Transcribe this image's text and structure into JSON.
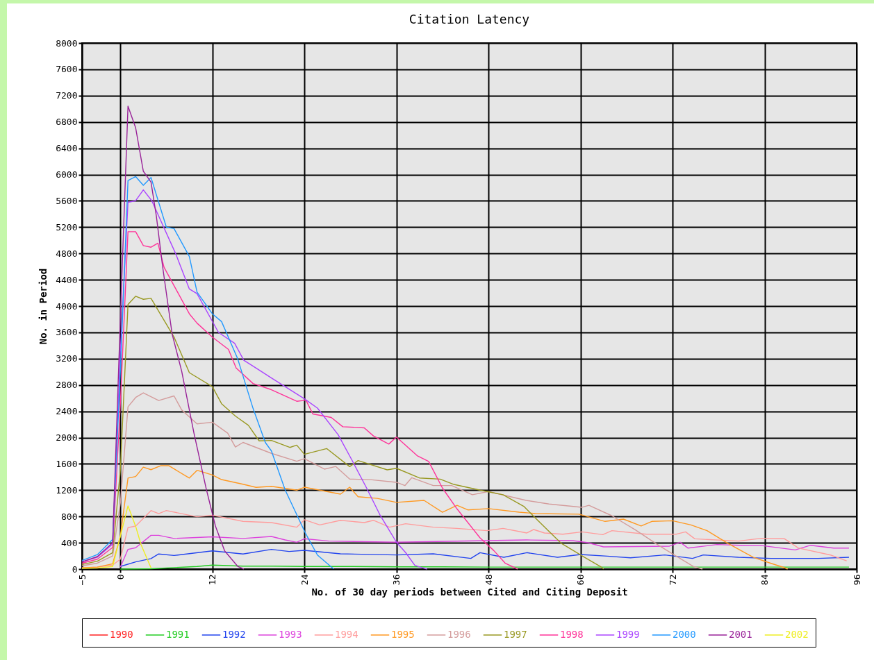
{
  "chart_data": {
    "type": "line",
    "title": "Citation Latency",
    "xlabel": "No. of 30 day periods between Cited and Citing Deposit",
    "ylabel": "No. in Period",
    "xlim": [
      -5,
      96
    ],
    "xticks": [
      -5,
      0,
      12,
      24,
      36,
      48,
      60,
      72,
      84,
      96
    ],
    "ylim": [
      0,
      8000
    ],
    "yticks": [
      0,
      400,
      800,
      1200,
      1600,
      2000,
      2400,
      2800,
      3200,
      3600,
      4000,
      4400,
      4800,
      5200,
      5600,
      6000,
      6400,
      6800,
      7200,
      7600,
      8000
    ],
    "grid": true,
    "legend": "bottom",
    "line_style": "solid",
    "series": [
      {
        "name": "1990",
        "color": "#ff2020"
      },
      {
        "name": "1991",
        "color": "#22cc22",
        "x": [
          0,
          4,
          10,
          12,
          16,
          20,
          24,
          30,
          36,
          42,
          48,
          54,
          60,
          66,
          72,
          78,
          84,
          90,
          95
        ],
        "values": [
          0,
          5,
          40,
          60,
          45,
          45,
          40,
          40,
          35,
          35,
          30,
          30,
          30,
          30,
          30,
          30,
          30,
          30,
          30
        ]
      },
      {
        "name": "1992",
        "color": "#2244ee",
        "x": [
          0,
          2,
          4,
          5,
          7,
          12,
          16,
          19.7,
          22,
          24,
          28.7,
          36,
          40.8,
          45.7,
          46.9,
          50,
          53,
          57,
          60,
          63.5,
          66.5,
          71,
          74.6,
          76,
          80.6,
          84.8,
          91,
          95
        ],
        "values": [
          40,
          110,
          160,
          230,
          207,
          277,
          230,
          300,
          268,
          285,
          232,
          215,
          232,
          162,
          250,
          180,
          250,
          180,
          222,
          197,
          172,
          215,
          162,
          215,
          180,
          162,
          162,
          180
        ]
      },
      {
        "name": "1993",
        "color": "#dd44dd",
        "x": [
          0,
          1,
          2,
          4,
          5,
          7,
          12,
          16,
          19.7,
          21.5,
          23,
          24,
          27.2,
          36,
          53,
          59,
          61,
          63,
          71.6,
          73,
          74,
          77.8,
          80.8,
          83.8,
          88,
          90,
          93,
          95
        ],
        "values": [
          30,
          300,
          325,
          513,
          513,
          466,
          490,
          466,
          496,
          443,
          408,
          461,
          426,
          409,
          443,
          432,
          401,
          338,
          349,
          408,
          320,
          373,
          362,
          355,
          292,
          362,
          320,
          320
        ]
      },
      {
        "name": "1994",
        "color": "#ff9c9c",
        "x": [
          -5,
          -3,
          -1,
          0,
          1,
          2,
          4,
          5,
          6,
          10,
          12,
          16,
          19.7,
          23,
          24,
          26,
          28.7,
          31.8,
          33,
          35.1,
          37.2,
          40.8,
          43.9,
          47.8,
          49.9,
          53,
          53.9,
          55.3,
          57.7,
          60.2,
          62.9,
          64.1,
          68.6,
          72.5,
          73.7,
          74.9,
          80.6,
          83.6,
          86.6,
          88.4,
          92.6,
          94.7
        ],
        "values": [
          20,
          30,
          60,
          150,
          630,
          654,
          890,
          843,
          890,
          796,
          819,
          725,
          707,
          637,
          750,
          672,
          742,
          707,
          742,
          637,
          690,
          637,
          619,
          584,
          619,
          549,
          602,
          549,
          531,
          566,
          524,
          584,
          531,
          531,
          566,
          460,
          426,
          468,
          461,
          320,
          214,
          126
        ]
      },
      {
        "name": "1995",
        "color": "#ff9922",
        "x": [
          -5,
          -3,
          -1,
          0,
          1,
          2,
          3,
          4,
          5.3,
          6.3,
          9,
          10,
          12,
          13.2,
          16,
          17.7,
          19.7,
          23,
          24,
          28.7,
          29.9,
          31,
          33.5,
          36,
          39.6,
          42,
          43.9,
          45.3,
          48,
          52,
          54.1,
          59.8,
          63.2,
          65.6,
          67.9,
          69.3,
          72,
          74.4,
          76.5,
          79.2,
          82.5,
          84.7,
          86.6,
          87
        ],
        "values": [
          20,
          30,
          80,
          500,
          1384,
          1408,
          1550,
          1512,
          1573,
          1573,
          1384,
          1502,
          1432,
          1361,
          1290,
          1243,
          1259,
          1200,
          1245,
          1140,
          1245,
          1100,
          1075,
          1015,
          1045,
          865,
          970,
          900,
          920,
          865,
          845,
          835,
          725,
          760,
          655,
          725,
          735,
          672,
          584,
          391,
          180,
          92,
          21,
          0
        ]
      },
      {
        "name": "1996",
        "color": "#d49c9c",
        "x": [
          -5,
          -3,
          -1,
          0,
          1,
          2,
          3,
          5,
          7,
          8,
          10,
          12,
          14,
          15,
          16,
          19.7,
          23,
          24,
          26.6,
          28.1,
          29.9,
          32.6,
          36,
          37.1,
          38,
          40.8,
          43.2,
          45.9,
          48,
          52.9,
          55.9,
          60.2,
          61.1,
          64.1,
          67.1,
          70.2,
          72.3,
          74.7,
          75.9
        ],
        "values": [
          50,
          90,
          200,
          1000,
          2468,
          2610,
          2680,
          2563,
          2633,
          2421,
          2209,
          2233,
          2068,
          1856,
          1926,
          1760,
          1640,
          1680,
          1520,
          1560,
          1370,
          1360,
          1320,
          1270,
          1390,
          1270,
          1270,
          1130,
          1180,
          1045,
          990,
          940,
          970,
          810,
          600,
          360,
          210,
          40,
          0
        ]
      },
      {
        "name": "1997",
        "color": "#999922",
        "x": [
          -5,
          -3,
          -1,
          0,
          1,
          2,
          3,
          4,
          7,
          9,
          12,
          13.2,
          15,
          16.7,
          18.1,
          19.7,
          22.1,
          23,
          24,
          26.9,
          29.9,
          31,
          34.8,
          36,
          39,
          41.7,
          43.5,
          46.9,
          49.9,
          52.6,
          54.4,
          57.5,
          60.5,
          62.6,
          63
        ],
        "values": [
          70,
          120,
          250,
          1500,
          4023,
          4150,
          4103,
          4117,
          3529,
          2987,
          2775,
          2515,
          2327,
          2186,
          1950,
          1956,
          1850,
          1885,
          1745,
          1833,
          1558,
          1650,
          1509,
          1533,
          1386,
          1368,
          1287,
          1200,
          1130,
          954,
          743,
          391,
          180,
          39,
          0
        ]
      },
      {
        "name": "1998",
        "color": "#ff3399",
        "x": [
          -5,
          -3,
          -1,
          0,
          1,
          2,
          3,
          4,
          4.9,
          5.7,
          9,
          10,
          12,
          14.1,
          15.1,
          17.3,
          19.7,
          23,
          24.2,
          25.1,
          27.5,
          29,
          31.8,
          33,
          35,
          36,
          38.7,
          40.2,
          42,
          43.9,
          46.9,
          48.7,
          50.2,
          51.8
        ],
        "values": [
          90,
          150,
          330,
          2500,
          5131,
          5131,
          4919,
          4895,
          4956,
          4589,
          3882,
          3740,
          3528,
          3340,
          3057,
          2822,
          2728,
          2552,
          2569,
          2359,
          2306,
          2165,
          2148,
          2025,
          1901,
          2007,
          1725,
          1637,
          1232,
          915,
          475,
          281,
          88,
          0
        ]
      },
      {
        "name": "1999",
        "color": "#aa44ff",
        "x": [
          -5,
          -3,
          -1,
          0,
          1,
          2,
          3,
          4.1,
          7.2,
          9,
          10,
          12.8,
          14.9,
          16.1,
          17.7,
          19.7,
          24,
          25.7,
          28.4,
          30.2,
          32.1,
          33.9,
          36,
          37.2,
          38.4,
          39.3,
          40
        ],
        "values": [
          110,
          180,
          380,
          3300,
          5578,
          5602,
          5767,
          5602,
          4801,
          4259,
          4188,
          3599,
          3434,
          3175,
          3057,
          2906,
          2589,
          2448,
          2044,
          1657,
          1235,
          813,
          409,
          251,
          57,
          22,
          0
        ]
      },
      {
        "name": "2000",
        "color": "#2299ff",
        "x": [
          -5,
          -3,
          -1,
          0,
          1,
          2,
          3,
          4,
          6,
          7,
          9,
          10,
          12,
          13.2,
          15.3,
          17.3,
          18.9,
          19.7,
          21.5,
          24.2,
          25.7,
          27.8
        ],
        "values": [
          130,
          220,
          450,
          3000,
          5908,
          5969,
          5837,
          5955,
          5201,
          5178,
          4754,
          4212,
          3882,
          3764,
          3199,
          2445,
          1926,
          1797,
          1200,
          531,
          214,
          3
        ]
      },
      {
        "name": "2001",
        "color": "#992299",
        "x": [
          -5,
          -3,
          -1,
          0,
          1,
          2,
          3,
          4,
          4.7,
          5.5,
          6.75,
          8,
          9.6,
          11.2,
          12.4,
          13.6,
          15.3,
          16.1
        ],
        "values": [
          110,
          190,
          400,
          3800,
          7039,
          6709,
          6050,
          5885,
          5366,
          4612,
          3576,
          3010,
          2068,
          1220,
          654,
          277,
          42,
          0
        ]
      },
      {
        "name": "2002",
        "color": "#eeee22",
        "x": [
          -5,
          -3,
          -1,
          0,
          1,
          2,
          2.7,
          4
        ],
        "values": [
          10,
          15,
          40,
          500,
          961,
          650,
          372,
          18
        ]
      }
    ]
  }
}
